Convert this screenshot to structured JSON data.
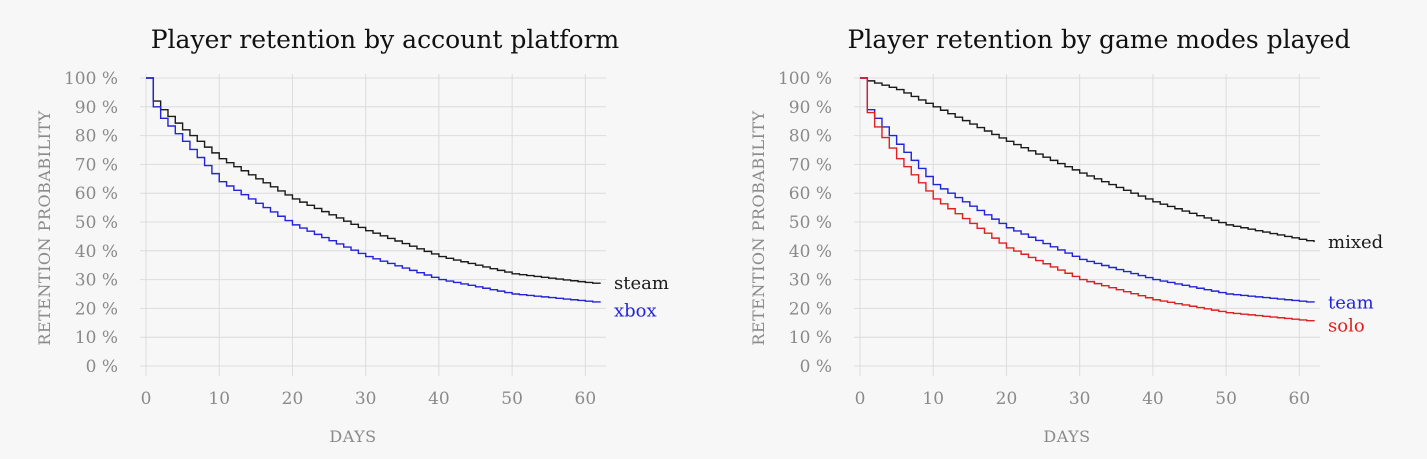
{
  "chart_data": [
    {
      "type": "line",
      "step": true,
      "title": "Player retention by account platform",
      "xlabel": "DAYS",
      "ylabel": "RETENTION PROBABILITY",
      "xlim": [
        0,
        62
      ],
      "ylim": [
        0,
        100
      ],
      "xticks": [
        0,
        10,
        20,
        30,
        40,
        50,
        60
      ],
      "yticks": [
        0,
        10,
        20,
        30,
        40,
        50,
        60,
        70,
        80,
        90,
        100
      ],
      "ytick_suffix": " %",
      "grid": true,
      "legend": "direct labels at line ends",
      "series": [
        {
          "name": "steam",
          "color": "#1a1a1a",
          "x": [
            0,
            1,
            2,
            5,
            10,
            20,
            30,
            40,
            50,
            60,
            62
          ],
          "y": [
            100,
            92,
            89,
            82,
            72,
            58,
            47,
            38,
            32,
            29,
            28.5
          ]
        },
        {
          "name": "xbox",
          "color": "#2323d9",
          "x": [
            0,
            1,
            2,
            5,
            10,
            20,
            30,
            40,
            50,
            60,
            62
          ],
          "y": [
            100,
            90,
            86,
            78,
            64,
            49,
            38,
            30,
            25,
            22.5,
            22
          ]
        }
      ]
    },
    {
      "type": "line",
      "step": true,
      "title": "Player retention by game modes played",
      "xlabel": "DAYS",
      "ylabel": "RETENTION PROBABILITY",
      "xlim": [
        0,
        62
      ],
      "ylim": [
        0,
        100
      ],
      "xticks": [
        0,
        10,
        20,
        30,
        40,
        50,
        60
      ],
      "yticks": [
        0,
        10,
        20,
        30,
        40,
        50,
        60,
        70,
        80,
        90,
        100
      ],
      "ytick_suffix": " %",
      "grid": true,
      "legend": "direct labels at line ends",
      "series": [
        {
          "name": "mixed",
          "color": "#1a1a1a",
          "x": [
            0,
            1,
            5,
            10,
            20,
            30,
            40,
            50,
            60,
            62
          ],
          "y": [
            100,
            99,
            96,
            90,
            78,
            67,
            57,
            49,
            44,
            43
          ]
        },
        {
          "name": "team",
          "color": "#2323d9",
          "x": [
            0,
            1,
            2,
            5,
            10,
            20,
            30,
            40,
            50,
            60,
            62
          ],
          "y": [
            100,
            89,
            86,
            77,
            63,
            48,
            37,
            30,
            25,
            22.5,
            22
          ]
        },
        {
          "name": "solo",
          "color": "#e0201e",
          "x": [
            0,
            1,
            2,
            5,
            10,
            20,
            30,
            40,
            50,
            60,
            62
          ],
          "y": [
            100,
            88,
            83,
            72,
            58,
            41,
            30,
            23,
            18.5,
            16,
            15.5
          ]
        }
      ]
    }
  ]
}
